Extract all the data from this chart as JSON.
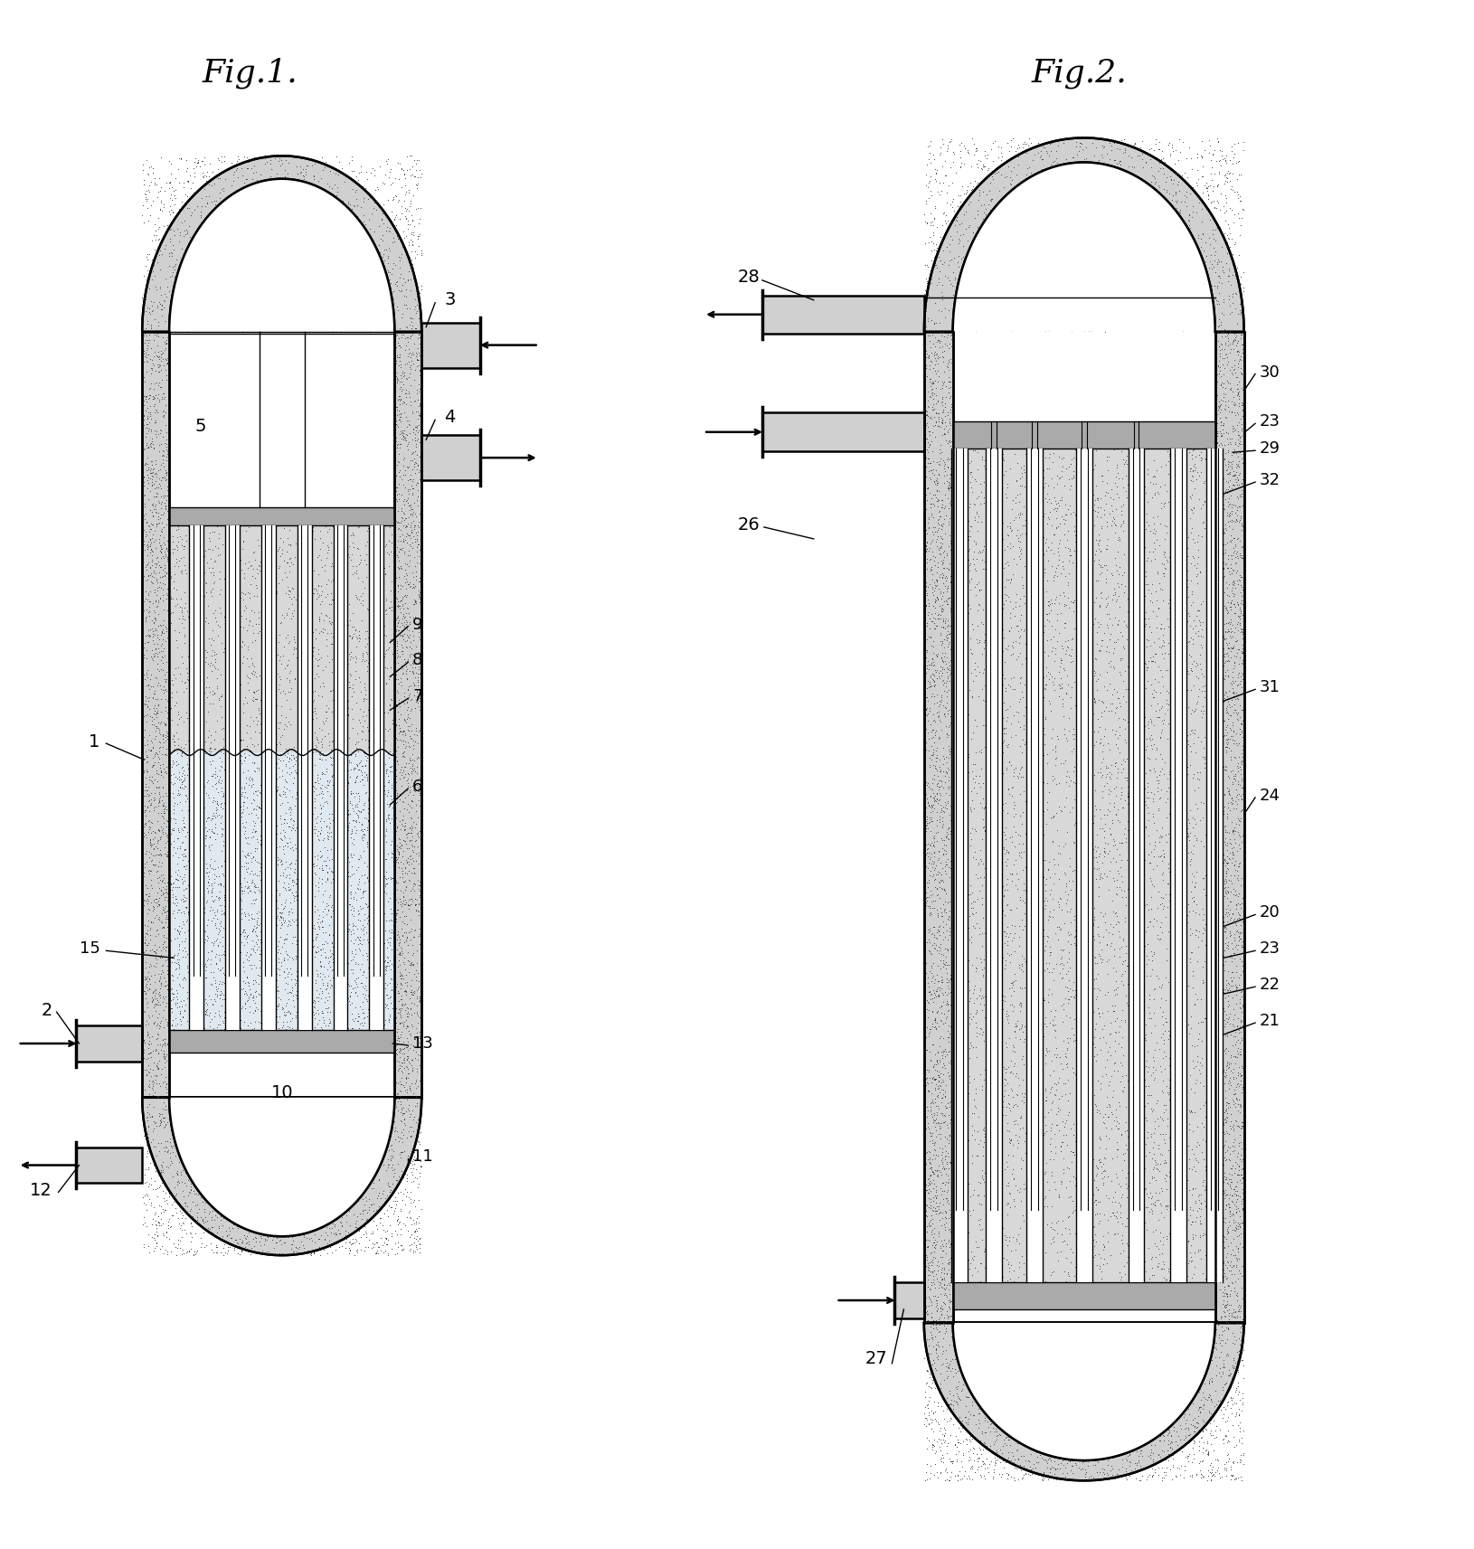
{
  "fig1_title": "Fig.1.",
  "fig2_title": "Fig.2.",
  "bg_color": "#ffffff",
  "line_color": "#000000",
  "wall_color": "#d0d0d0",
  "lw_main": 1.8,
  "lw_thin": 1.0,
  "lw_thick": 2.5
}
